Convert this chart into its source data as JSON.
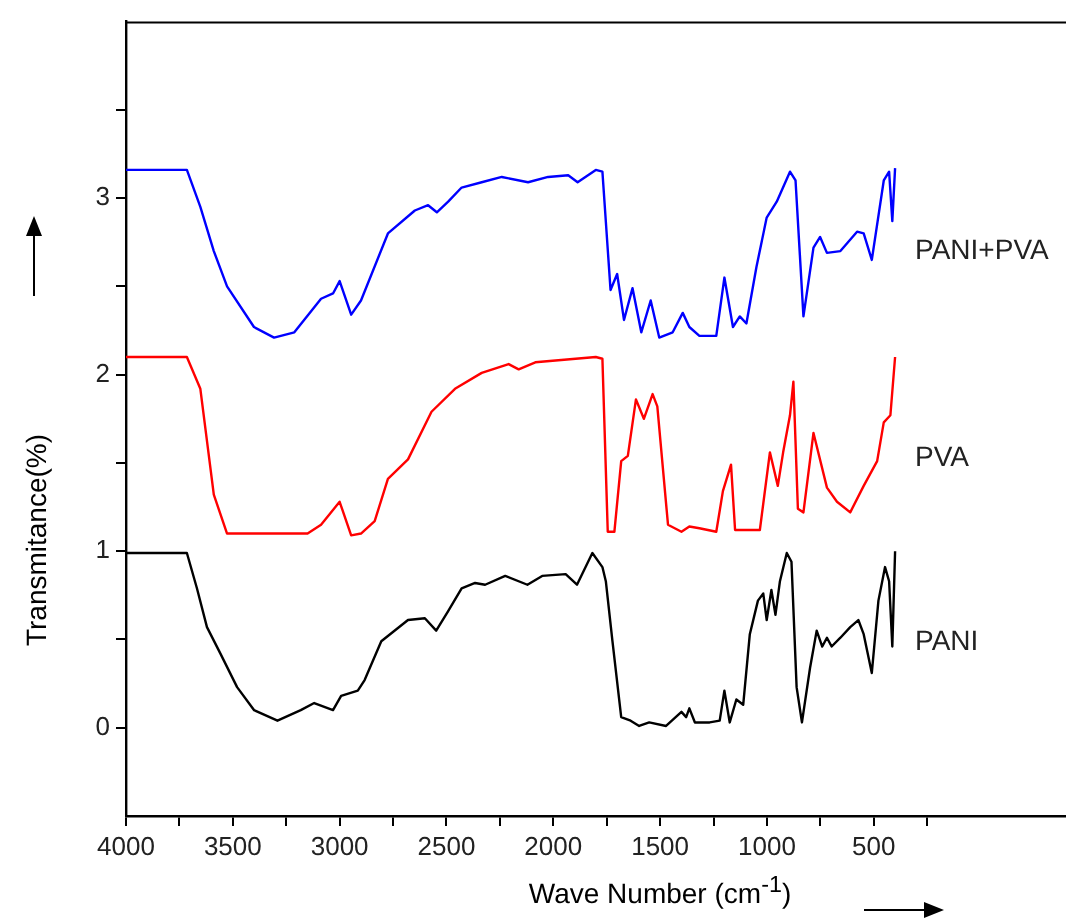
{
  "chart_data": {
    "type": "line",
    "xlabel": "Wave Number (cm$^{-1}$)",
    "ylabel": "Transmitance(%)",
    "xlim": [
      4000,
      -400
    ],
    "ylim": [
      -0.5,
      4
    ],
    "xticks": [
      4000,
      {
        "value": 3750,
        "label": null
      },
      3500,
      {
        "value": 3250,
        "label": null
      },
      3000,
      {
        "value": 2750,
        "label": null
      },
      2500,
      {
        "value": 2250,
        "label": null
      },
      2000,
      {
        "value": 1750,
        "label": null
      },
      1500,
      {
        "value": 1250,
        "label": null
      },
      1000,
      {
        "value": 750,
        "label": null
      },
      500,
      {
        "value": 250,
        "label": null
      }
    ],
    "yticks": [
      0,
      {
        "value": 0.5,
        "label": null
      },
      1,
      {
        "value": 1.5,
        "label": null
      },
      2,
      {
        "value": 2.5,
        "label": null
      },
      3,
      {
        "value": 3.5,
        "label": null
      }
    ],
    "grid": false,
    "legend": false,
    "marker": "none",
    "line_style": "solid",
    "series": [
      {
        "name": "PANI+PVA",
        "color": "#0000ff",
        "x": [
          4000,
          3715,
          3652,
          3589,
          3527,
          3401,
          3307,
          3212,
          3087,
          3031,
          3000,
          2946,
          2900,
          2774,
          2648,
          2586,
          2545,
          2492,
          2429,
          2335,
          2241,
          2118,
          2024,
          1930,
          1886,
          1801,
          1770,
          1732,
          1701,
          1669,
          1629,
          1588,
          1544,
          1504,
          1441,
          1394,
          1363,
          1316,
          1237,
          1199,
          1159,
          1127,
          1096,
          1049,
          1001,
          954,
          892,
          866,
          829,
          782,
          751,
          719,
          656,
          578,
          547,
          509,
          453,
          428,
          413,
          400
        ],
        "values": [
          3.16,
          3.16,
          2.95,
          2.7,
          2.5,
          2.27,
          2.21,
          2.24,
          2.43,
          2.46,
          2.53,
          2.34,
          2.42,
          2.8,
          2.93,
          2.96,
          2.92,
          2.98,
          3.06,
          3.09,
          3.12,
          3.09,
          3.12,
          3.13,
          3.09,
          3.16,
          3.15,
          2.48,
          2.57,
          2.31,
          2.49,
          2.24,
          2.42,
          2.21,
          2.24,
          2.35,
          2.27,
          2.22,
          2.22,
          2.55,
          2.27,
          2.33,
          2.29,
          2.61,
          2.89,
          2.98,
          3.15,
          3.1,
          2.33,
          2.72,
          2.78,
          2.69,
          2.7,
          2.81,
          2.8,
          2.65,
          3.1,
          3.15,
          2.87,
          3.17
        ]
      },
      {
        "name": "PVA",
        "color": "#ff0000",
        "x": [
          4000,
          3715,
          3652,
          3589,
          3527,
          3150,
          3087,
          3000,
          2946,
          2900,
          2836,
          2774,
          2680,
          2570,
          2460,
          2335,
          2209,
          2162,
          2084,
          1801,
          1770,
          1745,
          1714,
          1682,
          1651,
          1613,
          1576,
          1535,
          1513,
          1463,
          1400,
          1363,
          1316,
          1237,
          1206,
          1168,
          1149,
          1033,
          986,
          949,
          924,
          892,
          876,
          855,
          829,
          782,
          719,
          672,
          610,
          547,
          484,
          453,
          422,
          400
        ],
        "values": [
          2.1,
          2.1,
          1.92,
          1.32,
          1.1,
          1.1,
          1.15,
          1.28,
          1.09,
          1.1,
          1.17,
          1.41,
          1.52,
          1.79,
          1.92,
          2.01,
          2.06,
          2.03,
          2.07,
          2.1,
          2.09,
          1.11,
          1.11,
          1.51,
          1.54,
          1.86,
          1.75,
          1.89,
          1.82,
          1.15,
          1.11,
          1.14,
          1.13,
          1.11,
          1.34,
          1.49,
          1.12,
          1.12,
          1.56,
          1.37,
          1.56,
          1.77,
          1.96,
          1.24,
          1.22,
          1.67,
          1.36,
          1.28,
          1.22,
          1.37,
          1.51,
          1.73,
          1.77,
          2.1
        ]
      },
      {
        "name": "PANI",
        "color": "#000000",
        "x": [
          4000,
          3715,
          3668,
          3621,
          3558,
          3480,
          3401,
          3291,
          3182,
          3119,
          3031,
          2993,
          2915,
          2883,
          2805,
          2680,
          2601,
          2548,
          2492,
          2429,
          2366,
          2319,
          2225,
          2121,
          2052,
          1942,
          1889,
          1817,
          1770,
          1754,
          1723,
          1682,
          1638,
          1598,
          1551,
          1472,
          1400,
          1378,
          1363,
          1337,
          1268,
          1221,
          1199,
          1174,
          1143,
          1111,
          1080,
          1042,
          1017,
          1001,
          979,
          960,
          939,
          907,
          885,
          861,
          836,
          798,
          767,
          741,
          719,
          697,
          656,
          610,
          572,
          547,
          509,
          478,
          447,
          428,
          413,
          400
        ],
        "values": [
          0.99,
          0.99,
          0.79,
          0.57,
          0.42,
          0.23,
          0.1,
          0.04,
          0.1,
          0.14,
          0.1,
          0.18,
          0.21,
          0.27,
          0.49,
          0.61,
          0.62,
          0.55,
          0.66,
          0.79,
          0.82,
          0.81,
          0.86,
          0.81,
          0.86,
          0.87,
          0.81,
          0.99,
          0.91,
          0.83,
          0.49,
          0.06,
          0.04,
          0.01,
          0.03,
          0.01,
          0.09,
          0.06,
          0.11,
          0.03,
          0.03,
          0.04,
          0.21,
          0.03,
          0.16,
          0.13,
          0.53,
          0.72,
          0.76,
          0.61,
          0.78,
          0.64,
          0.83,
          0.99,
          0.94,
          0.23,
          0.03,
          0.34,
          0.55,
          0.46,
          0.51,
          0.46,
          0.51,
          0.57,
          0.61,
          0.53,
          0.31,
          0.72,
          0.91,
          0.83,
          0.46,
          1.0
        ]
      }
    ]
  }
}
